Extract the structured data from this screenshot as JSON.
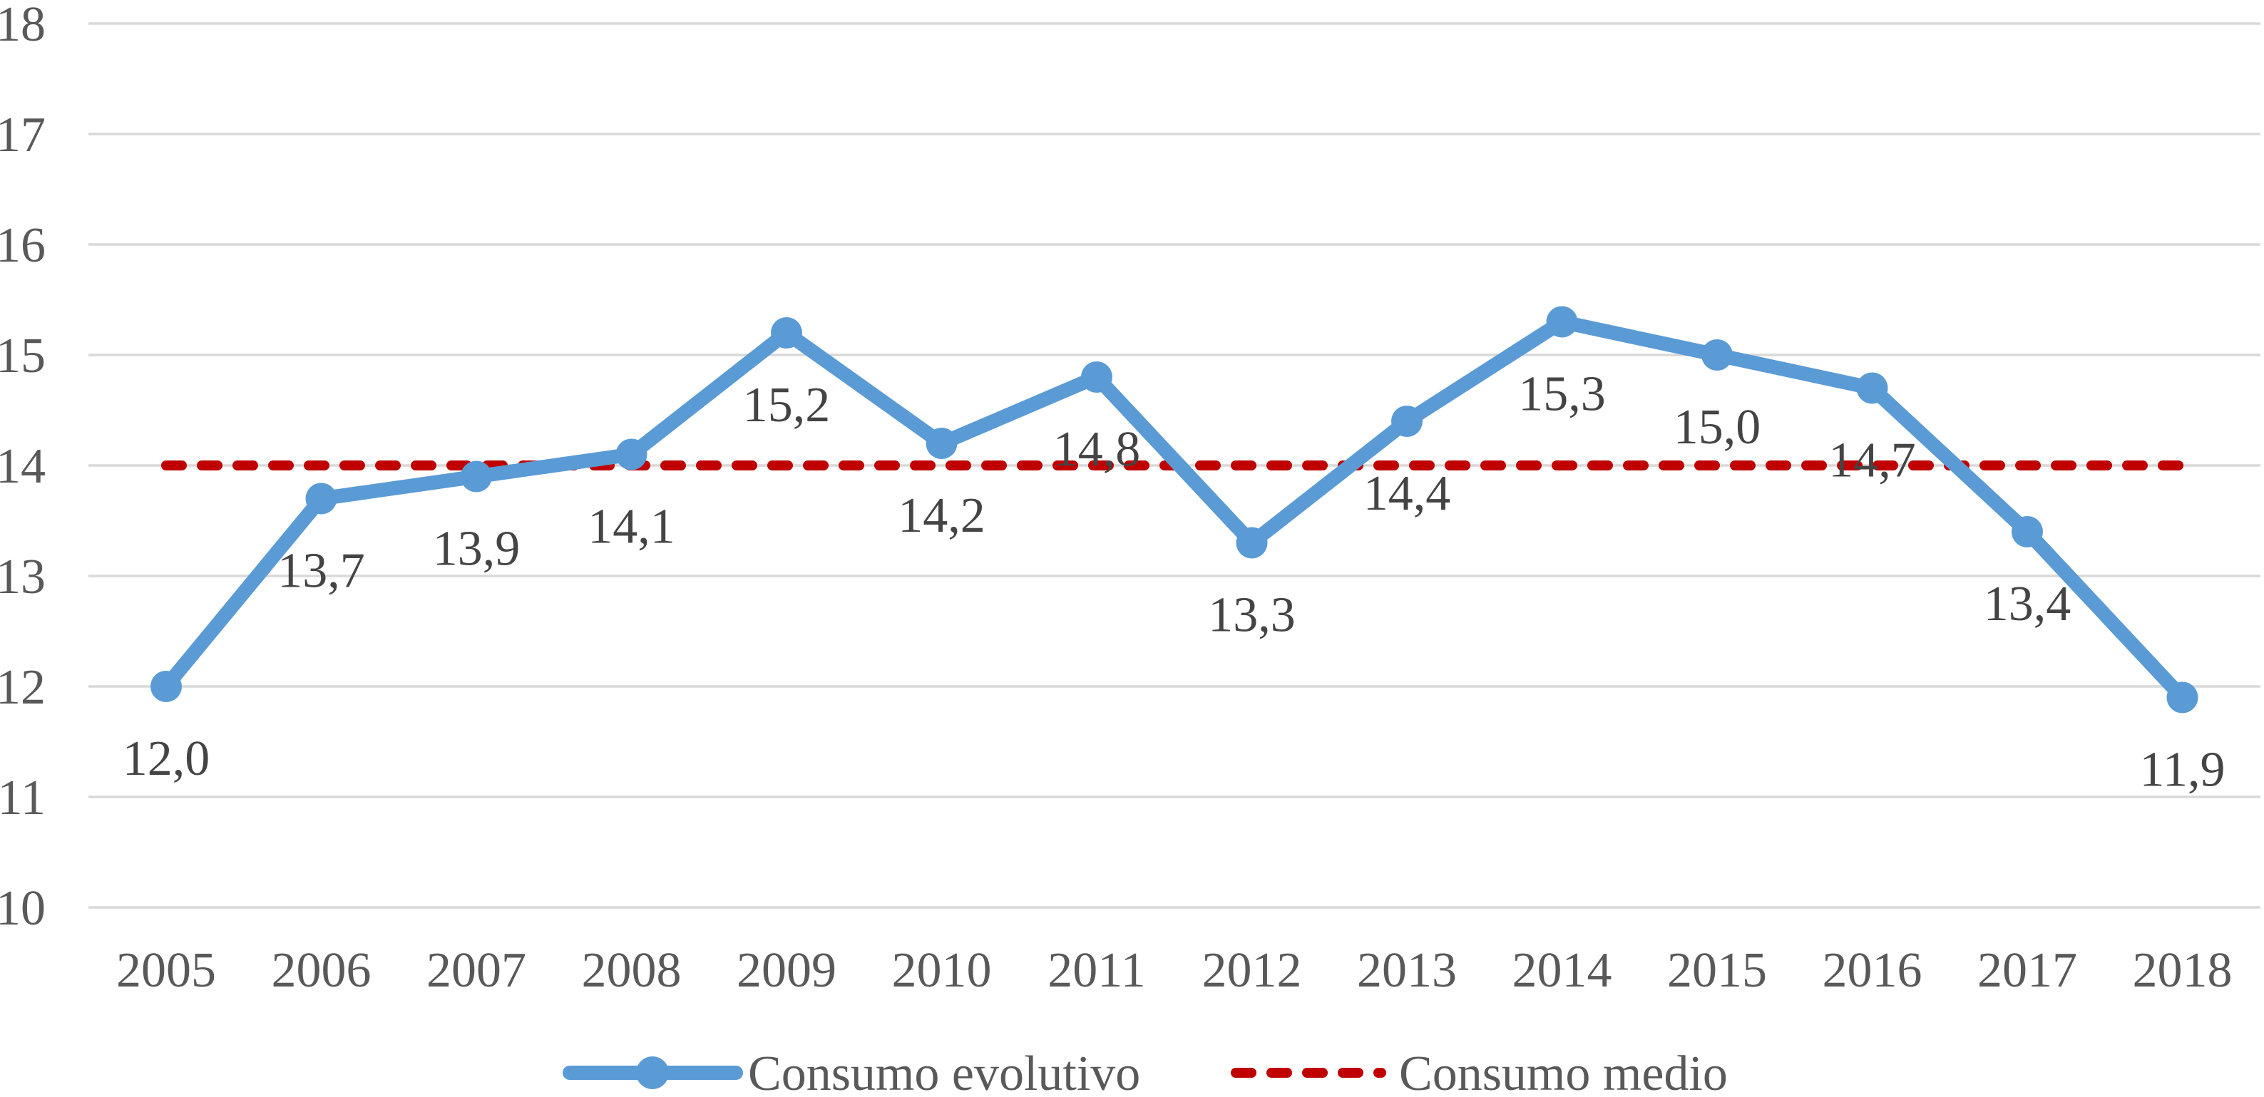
{
  "chart_data": {
    "type": "line",
    "title": "",
    "xlabel": "",
    "ylabel": "",
    "categories": [
      "2005",
      "2006",
      "2007",
      "2008",
      "2009",
      "2010",
      "2011",
      "2012",
      "2013",
      "2014",
      "2015",
      "2016",
      "2017",
      "2018"
    ],
    "series": [
      {
        "name": "Consumo evolutivo",
        "color": "#5B9BD5",
        "line_style": "solid",
        "markers": true,
        "values": [
          12.0,
          13.7,
          13.9,
          14.1,
          15.2,
          14.2,
          14.8,
          13.3,
          14.4,
          15.3,
          15.0,
          14.7,
          13.4,
          11.9
        ],
        "data_labels": [
          "12,0",
          "13,7",
          "13,9",
          "14,1",
          "15,2",
          "14,2",
          "14,8",
          "13,3",
          "14,4",
          "15,3",
          "15,0",
          "14,7",
          "13,4",
          "11,9"
        ]
      },
      {
        "name": "Consumo medio",
        "color": "#C00000",
        "line_style": "dashed",
        "markers": false,
        "values": [
          14,
          14,
          14,
          14,
          14,
          14,
          14,
          14,
          14,
          14,
          14,
          14,
          14,
          14
        ],
        "data_labels": []
      }
    ],
    "ylim": [
      10,
      18
    ],
    "ytick_step": 1,
    "yticks": [
      "10",
      "11",
      "12",
      "13",
      "14",
      "15",
      "16",
      "17",
      "18"
    ],
    "grid": true,
    "legend_position": "bottom",
    "decimal_separator": ",",
    "styles": {
      "grid_color": "#D9D9D9",
      "axis_text_color": "#595959",
      "data_label_color": "#444444",
      "background": "#FFFFFF"
    }
  }
}
